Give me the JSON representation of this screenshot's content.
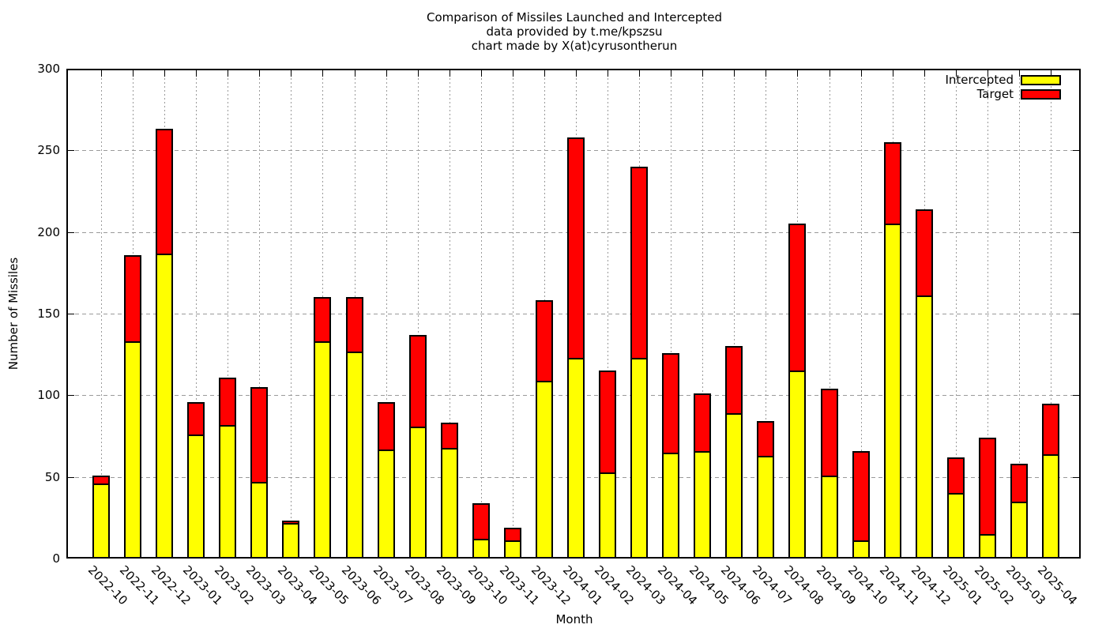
{
  "title": {
    "line1": "Comparison of Missiles Launched and Intercepted",
    "line2": "data provided by t.me/kpszsu",
    "line3": "chart made by X(at)cyrusontherun"
  },
  "axes": {
    "x_label": "Month",
    "y_label": "Number of Missiles",
    "y_ticks": [
      0,
      50,
      100,
      150,
      200,
      250,
      300
    ]
  },
  "legend": [
    {
      "label": "Intercepted",
      "color": "#ffff00"
    },
    {
      "label": "Target",
      "color": "#ff0000"
    }
  ],
  "chart_data": {
    "type": "bar",
    "stacked": true,
    "title": "Comparison of Missiles Launched and Intercepted\ndata provided by t.me/kpszsu\nchart made by X(at)cyrusontherun",
    "xlabel": "Month",
    "ylabel": "Number of Missiles",
    "ylim": [
      0,
      300
    ],
    "grid": true,
    "legend_position": "top-right",
    "bar_style": "yellow intercepted segment from 0; red segment stacked on top up to target total; black outlines",
    "categories": [
      "2022-10",
      "2022-11",
      "2022-12",
      "2023-01",
      "2023-02",
      "2023-03",
      "2023-04",
      "2023-05",
      "2023-06",
      "2023-07",
      "2023-08",
      "2023-09",
      "2023-10",
      "2023-11",
      "2023-12",
      "2024-01",
      "2024-02",
      "2024-03",
      "2024-04",
      "2024-05",
      "2024-06",
      "2024-07",
      "2024-08",
      "2024-09",
      "2024-10",
      "2024-11",
      "2024-12",
      "2025-01",
      "2025-02",
      "2025-03",
      "2025-04"
    ],
    "series": [
      {
        "name": "Intercepted",
        "color": "#ffff00",
        "values": [
          45,
          132,
          186,
          75,
          81,
          46,
          21,
          132,
          126,
          66,
          80,
          67,
          11,
          10,
          108,
          122,
          52,
          122,
          64,
          65,
          88,
          62,
          114,
          50,
          10,
          204,
          160,
          39,
          14,
          34,
          63
        ]
      },
      {
        "name": "Target",
        "color": "#ff0000",
        "meaning": "total bar height (missiles launched); red visible segment = target minus intercepted",
        "values": [
          51,
          186,
          263,
          96,
          111,
          105,
          23,
          160,
          160,
          96,
          137,
          83,
          34,
          19,
          158,
          258,
          115,
          240,
          126,
          101,
          130,
          84,
          205,
          104,
          66,
          255,
          214,
          62,
          74,
          58,
          95
        ]
      }
    ]
  }
}
